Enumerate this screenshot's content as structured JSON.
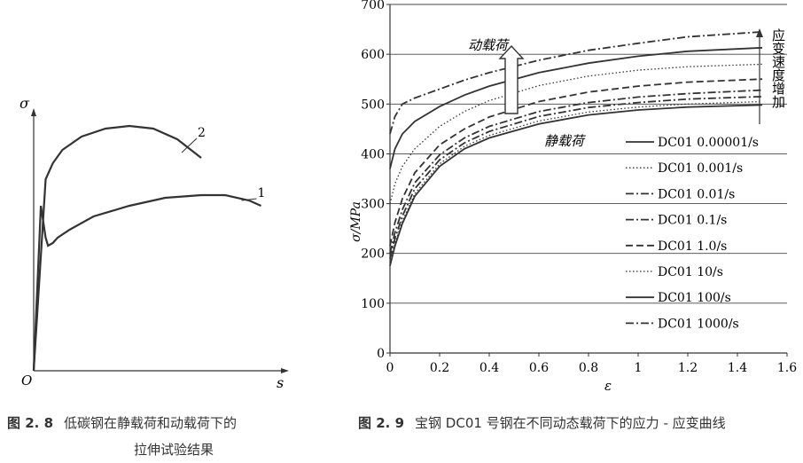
{
  "chart_data": [
    {
      "type": "line",
      "figure_number": "图 2. 8",
      "caption_line1": "低碳钢在静载荷和动载荷下的",
      "caption_line2": "拉伸试验结果",
      "ylabel": "σ",
      "xlabel": "s",
      "origin_label": "O",
      "grid": false,
      "series": [
        {
          "name": "1",
          "x": [
            0,
            0.03,
            0.05,
            0.06,
            0.08,
            0.1,
            0.15,
            0.25,
            0.4,
            0.55,
            0.7,
            0.8,
            0.9,
            0.95
          ],
          "y": [
            0,
            0.62,
            0.5,
            0.47,
            0.48,
            0.5,
            0.53,
            0.58,
            0.62,
            0.65,
            0.66,
            0.66,
            0.64,
            0.62
          ]
        },
        {
          "name": "2",
          "x": [
            0,
            0.05,
            0.08,
            0.12,
            0.2,
            0.3,
            0.4,
            0.5,
            0.6,
            0.7
          ],
          "y": [
            0,
            0.72,
            0.78,
            0.83,
            0.88,
            0.91,
            0.92,
            0.91,
            0.87,
            0.8
          ]
        }
      ]
    },
    {
      "type": "line",
      "figure_number": "图 2. 9",
      "caption": "宝钢 DC01 号钢在不同动态载荷下的应力 - 应变曲线",
      "ylabel": "σ/MPa",
      "xlabel": "ε",
      "xlim": [
        0,
        1.6
      ],
      "ylim": [
        0,
        700
      ],
      "xticks": [
        "0",
        "0.2",
        "0.4",
        "0.6",
        "0.8",
        "1",
        "1.2",
        "1.4",
        "1.6"
      ],
      "yticks": [
        "0",
        "100",
        "200",
        "300",
        "400",
        "500",
        "600",
        "700"
      ],
      "grid": "horizontal",
      "legend_position": "right",
      "annotations": {
        "dynamic": "动载荷",
        "static": "静载荷",
        "increase": "应变速度增加"
      },
      "series": [
        {
          "name": "DC01 0.00001/s",
          "style": "solid",
          "x": [
            0,
            0.02,
            0.05,
            0.1,
            0.2,
            0.3,
            0.4,
            0.6,
            0.8,
            1.0,
            1.2,
            1.5
          ],
          "y": [
            175,
            215,
            260,
            315,
            375,
            410,
            432,
            460,
            478,
            488,
            494,
            498
          ]
        },
        {
          "name": "DC01 0.001/s",
          "style": "dotted",
          "x": [
            0,
            0.02,
            0.05,
            0.1,
            0.2,
            0.3,
            0.4,
            0.6,
            0.8,
            1.0,
            1.2,
            1.5
          ],
          "y": [
            180,
            220,
            265,
            320,
            380,
            415,
            437,
            466,
            484,
            494,
            500,
            505
          ]
        },
        {
          "name": "DC01 0.01/s",
          "style": "dashdot",
          "x": [
            0,
            0.02,
            0.05,
            0.1,
            0.2,
            0.3,
            0.4,
            0.6,
            0.8,
            1.0,
            1.2,
            1.5
          ],
          "y": [
            190,
            230,
            275,
            330,
            388,
            422,
            445,
            475,
            493,
            503,
            510,
            515
          ]
        },
        {
          "name": "DC01 0.1/s",
          "style": "dashdot",
          "x": [
            0,
            0.02,
            0.05,
            0.1,
            0.2,
            0.3,
            0.4,
            0.6,
            0.8,
            1.0,
            1.2,
            1.5
          ],
          "y": [
            200,
            242,
            288,
            342,
            398,
            432,
            455,
            485,
            503,
            514,
            521,
            528
          ]
        },
        {
          "name": "DC01 1.0/s",
          "style": "dashed",
          "x": [
            0,
            0.02,
            0.05,
            0.1,
            0.2,
            0.3,
            0.4,
            0.6,
            0.8,
            1.0,
            1.2,
            1.5
          ],
          "y": [
            215,
            262,
            310,
            362,
            418,
            450,
            474,
            505,
            524,
            536,
            544,
            550
          ]
        },
        {
          "name": "DC01 10/s",
          "style": "dotted",
          "x": [
            0,
            0.02,
            0.05,
            0.1,
            0.2,
            0.3,
            0.4,
            0.6,
            0.8,
            1.0,
            1.2,
            1.5
          ],
          "y": [
            300,
            340,
            375,
            410,
            455,
            485,
            507,
            537,
            556,
            568,
            575,
            580
          ]
        },
        {
          "name": "DC01 100/s",
          "style": "solid",
          "x": [
            0,
            0.02,
            0.05,
            0.1,
            0.2,
            0.3,
            0.4,
            0.6,
            0.8,
            1.0,
            1.2,
            1.5
          ],
          "y": [
            370,
            410,
            440,
            465,
            495,
            518,
            536,
            563,
            582,
            596,
            606,
            613
          ]
        },
        {
          "name": "DC01 1000/s",
          "style": "dashdot",
          "x": [
            0,
            0.02,
            0.05,
            0.1,
            0.2,
            0.3,
            0.4,
            0.6,
            0.8,
            1.0,
            1.2,
            1.5
          ],
          "y": [
            440,
            475,
            500,
            512,
            530,
            548,
            563,
            588,
            608,
            622,
            635,
            645
          ]
        }
      ]
    }
  ]
}
